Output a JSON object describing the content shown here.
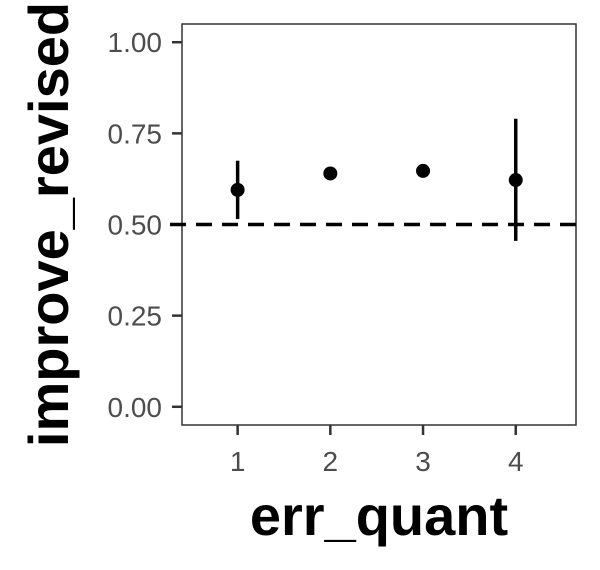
{
  "chart_data": {
    "type": "scatter",
    "title": "",
    "xlabel": "err_quant",
    "ylabel": "improve_revised",
    "x_ticks": [
      "1",
      "2",
      "3",
      "4"
    ],
    "y_ticks": [
      "0.00",
      "0.25",
      "0.50",
      "0.75",
      "1.00"
    ],
    "xlim": [
      0.4,
      4.65
    ],
    "ylim": [
      -0.05,
      1.05
    ],
    "grid": false,
    "legend": "none",
    "reference_line": {
      "y": 0.5,
      "style": "dashed",
      "color": "#000000"
    },
    "points": [
      {
        "x": 1,
        "y": 0.595,
        "lower": 0.515,
        "upper": 0.675
      },
      {
        "x": 2,
        "y": 0.64
      },
      {
        "x": 3,
        "y": 0.647
      },
      {
        "x": 4,
        "y": 0.622,
        "lower": 0.455,
        "upper": 0.79
      }
    ],
    "colors": {
      "points": "#000000",
      "panel_border": "#333333",
      "tick_text": "#4d4d4d"
    }
  }
}
